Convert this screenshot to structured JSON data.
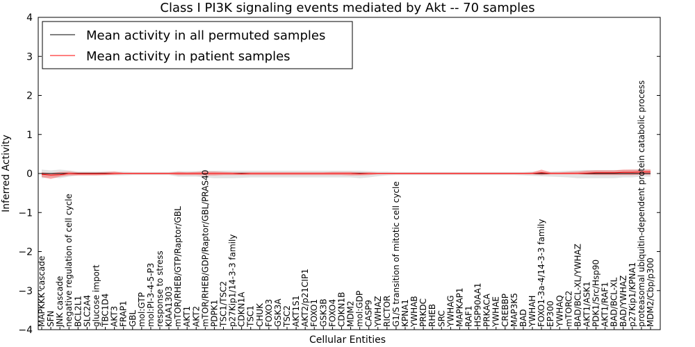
{
  "chart_data": {
    "type": "line",
    "title": "Class I PI3K signaling events mediated by Akt -- 70 samples",
    "xlabel": "Cellular Entities",
    "ylabel": "Inferred Activity",
    "ylim": [
      -4,
      4
    ],
    "yticks": [
      -4,
      -3,
      -2,
      -1,
      0,
      1,
      2,
      3,
      4
    ],
    "ytick_labels": [
      "−4",
      "−3",
      "−2",
      "−1",
      "0",
      "1",
      "2",
      "3",
      "4"
    ],
    "legend_position": "top-left",
    "categories": [
      "MAPKKK cascade",
      "SFN",
      "JNK cascade",
      "negative regulation of cell cycle",
      "BCL2L1",
      "SLC2A4",
      "glucose import",
      "TBC1D4",
      "AKT3",
      "FRAP1",
      "GBL",
      "mol:GTP",
      "mol:PI-3-4-5-P3",
      "response to stress",
      "KIAA1303",
      "mTOR/RHEB/GTP/Raptor/GBL",
      "AKT1",
      "AKT2",
      "mTOR/RHEB/GDP/Raptor/GBL/PRAS40",
      "PDPK1",
      "TSC1/TSC2",
      "p27Kip1/14-3-3 family",
      "CDKN1A",
      "TSC1",
      "CHUK",
      "FOXO3",
      "GSK3A",
      "TSC2",
      "AKT1S1",
      "AKT2/p21CIP1",
      "FOXO1",
      "GSK3B",
      "FOXO4",
      "CDKN1B",
      "MDM2",
      "mol:GDP",
      "CASP9",
      "YWHAZ",
      "RICTOR",
      "G1/S transition of mitotic cell cycle",
      "KPNA1",
      "YWHAB",
      "PRKDC",
      "RHEB",
      "SRC",
      "YWHAG",
      "MAPKAP1",
      "RAF1",
      "HSP90AA1",
      "PRKACA",
      "YWHAE",
      "CREBBP",
      "MAP3K5",
      "BAD",
      "YWHAH",
      "FOXO1-3a-4/14-3-3 family",
      "EP300",
      "YWHAQ",
      "mTORC2",
      "BAD/BCL-XL/YWHAZ",
      "AKT1/ASK1",
      "PDK1/Src/Hsp90",
      "AKT1/RAF1",
      "BAD/BCL-XL",
      "BAD/YWHAZ",
      "p27Kip1/KPNA1",
      "proteasomal ubiquitin-dependent protein catabolic process",
      "MDM2/Cbp/p300"
    ],
    "series": [
      {
        "name": "Mean activity in all permuted samples",
        "color": "#000000",
        "values": [
          0.0,
          0.0,
          0.0,
          0.0,
          0.0,
          0.0,
          0.0,
          0.0,
          0.0,
          0.0,
          0.0,
          0.0,
          0.0,
          0.0,
          0.0,
          0.0,
          0.0,
          0.0,
          0.0,
          0.0,
          0.0,
          0.0,
          0.0,
          0.0,
          0.0,
          0.0,
          0.0,
          0.0,
          0.0,
          0.0,
          0.0,
          0.0,
          0.0,
          0.0,
          0.0,
          0.0,
          0.0,
          0.0,
          0.0,
          0.0,
          0.0,
          0.0,
          0.0,
          0.0,
          0.0,
          0.0,
          0.0,
          0.0,
          0.0,
          0.0,
          0.0,
          0.0,
          0.0,
          0.0,
          0.0,
          0.0,
          0.0,
          0.0,
          0.0,
          0.0,
          0.0,
          0.0,
          0.0,
          0.0,
          0.0,
          0.0,
          0.0,
          0.0
        ],
        "band_upper": [
          0.1,
          0.08,
          0.1,
          0.08,
          0.05,
          0.05,
          0.05,
          0.05,
          0.05,
          0.05,
          0.04,
          0.04,
          0.04,
          0.04,
          0.04,
          0.06,
          0.06,
          0.06,
          0.07,
          0.07,
          0.07,
          0.07,
          0.07,
          0.07,
          0.07,
          0.07,
          0.07,
          0.07,
          0.07,
          0.07,
          0.07,
          0.07,
          0.07,
          0.07,
          0.07,
          0.07,
          0.06,
          0.05,
          0.05,
          0.04,
          0.04,
          0.04,
          0.04,
          0.04,
          0.04,
          0.04,
          0.04,
          0.04,
          0.04,
          0.04,
          0.04,
          0.04,
          0.04,
          0.04,
          0.05,
          0.05,
          0.05,
          0.06,
          0.07,
          0.08,
          0.09,
          0.09,
          0.09,
          0.09,
          0.09,
          0.1,
          0.1,
          0.1
        ],
        "band_lower": [
          -0.12,
          -0.1,
          -0.12,
          -0.08,
          -0.05,
          -0.05,
          -0.05,
          -0.05,
          -0.05,
          -0.05,
          -0.04,
          -0.04,
          -0.04,
          -0.04,
          -0.04,
          -0.08,
          -0.08,
          -0.08,
          -0.1,
          -0.12,
          -0.12,
          -0.12,
          -0.11,
          -0.1,
          -0.1,
          -0.1,
          -0.1,
          -0.1,
          -0.1,
          -0.1,
          -0.1,
          -0.1,
          -0.1,
          -0.1,
          -0.1,
          -0.12,
          -0.1,
          -0.07,
          -0.05,
          -0.04,
          -0.04,
          -0.04,
          -0.04,
          -0.04,
          -0.04,
          -0.04,
          -0.04,
          -0.04,
          -0.04,
          -0.04,
          -0.04,
          -0.04,
          -0.04,
          -0.05,
          -0.06,
          -0.07,
          -0.08,
          -0.09,
          -0.1,
          -0.12,
          -0.12,
          -0.12,
          -0.12,
          -0.12,
          -0.1,
          -0.1,
          -0.08,
          -0.08
        ]
      },
      {
        "name": "Mean activity in patient samples",
        "color": "#ff0000",
        "values": [
          -0.02,
          -0.04,
          -0.03,
          0.0,
          -0.01,
          -0.01,
          -0.01,
          -0.01,
          0.0,
          0.0,
          0.0,
          0.0,
          0.0,
          0.0,
          0.0,
          0.0,
          0.0,
          0.0,
          0.0,
          0.0,
          0.0,
          0.0,
          -0.01,
          0.0,
          0.0,
          0.0,
          0.0,
          0.0,
          0.0,
          0.0,
          0.0,
          0.0,
          0.0,
          0.0,
          0.0,
          -0.01,
          0.0,
          0.0,
          0.0,
          0.0,
          0.0,
          0.0,
          0.0,
          0.0,
          0.0,
          0.0,
          0.0,
          0.0,
          0.0,
          0.0,
          0.0,
          0.0,
          0.0,
          0.0,
          0.0,
          0.02,
          0.0,
          0.0,
          0.0,
          0.0,
          0.01,
          0.02,
          0.02,
          0.02,
          0.03,
          0.03,
          0.04,
          0.04
        ],
        "band_upper": [
          0.03,
          0.01,
          0.04,
          0.05,
          0.03,
          0.03,
          0.03,
          0.04,
          0.05,
          0.02,
          0.02,
          0.02,
          0.02,
          0.02,
          0.02,
          0.04,
          0.03,
          0.04,
          0.05,
          0.05,
          0.04,
          0.03,
          0.03,
          0.03,
          0.03,
          0.03,
          0.03,
          0.03,
          0.03,
          0.03,
          0.03,
          0.03,
          0.04,
          0.04,
          0.04,
          0.03,
          0.03,
          0.02,
          0.02,
          0.02,
          0.02,
          0.02,
          0.02,
          0.02,
          0.02,
          0.02,
          0.02,
          0.02,
          0.02,
          0.02,
          0.02,
          0.02,
          0.02,
          0.02,
          0.03,
          0.1,
          0.03,
          0.03,
          0.04,
          0.05,
          0.07,
          0.08,
          0.08,
          0.08,
          0.1,
          0.1,
          0.1,
          0.1
        ],
        "band_lower": [
          -0.09,
          -0.14,
          -0.08,
          -0.05,
          -0.05,
          -0.05,
          -0.05,
          -0.04,
          -0.03,
          -0.02,
          -0.02,
          -0.02,
          -0.02,
          -0.02,
          -0.02,
          -0.04,
          -0.04,
          -0.04,
          -0.05,
          -0.05,
          -0.04,
          -0.04,
          -0.04,
          -0.04,
          -0.04,
          -0.04,
          -0.04,
          -0.04,
          -0.04,
          -0.04,
          -0.04,
          -0.04,
          -0.04,
          -0.04,
          -0.05,
          -0.05,
          -0.04,
          -0.02,
          -0.02,
          -0.02,
          -0.02,
          -0.02,
          -0.02,
          -0.02,
          -0.02,
          -0.02,
          -0.02,
          -0.02,
          -0.02,
          -0.02,
          -0.02,
          -0.02,
          -0.02,
          -0.02,
          -0.02,
          -0.04,
          -0.02,
          -0.02,
          -0.02,
          -0.02,
          -0.03,
          -0.04,
          -0.04,
          -0.04,
          -0.04,
          -0.04,
          -0.03,
          -0.03
        ]
      }
    ]
  }
}
